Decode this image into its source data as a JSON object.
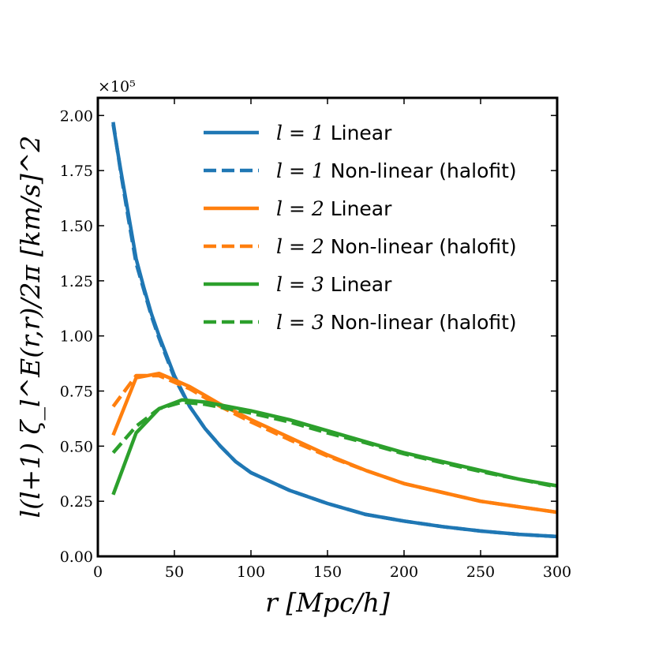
{
  "chart_data": {
    "type": "line",
    "title": "",
    "xlabel": "r [Mpc/h]",
    "ylabel": "l(l+1) ζ_l^E(r,r)/2π [km/s]^2",
    "y_offset_label": "×10⁵",
    "y_scale": 100000,
    "xlim": [
      0,
      300
    ],
    "ylim": [
      0,
      2.08
    ],
    "x_ticks": [
      0,
      50,
      100,
      150,
      200,
      250,
      300
    ],
    "x_tick_labels": [
      "0",
      "50",
      "100",
      "150",
      "200",
      "250",
      "300"
    ],
    "y_ticks": [
      0,
      0.25,
      0.5,
      0.75,
      1.0,
      1.25,
      1.5,
      1.75,
      2.0
    ],
    "y_tick_labels": [
      "0.00",
      "0.25",
      "0.50",
      "0.75",
      "1.00",
      "1.25",
      "1.50",
      "1.75",
      "2.00"
    ],
    "legend_position": "top-right",
    "series": [
      {
        "name": "l = 1 Linear",
        "legend_math": "l = 1",
        "legend_text": "Linear",
        "color": "#1f77b4",
        "dash": "solid",
        "x": [
          10,
          15,
          20,
          25,
          30,
          35,
          40,
          50,
          60,
          70,
          80,
          90,
          100,
          125,
          150,
          175,
          200,
          225,
          250,
          275,
          300
        ],
        "y": [
          1.96,
          1.75,
          1.55,
          1.35,
          1.22,
          1.1,
          1.0,
          0.82,
          0.68,
          0.58,
          0.5,
          0.43,
          0.38,
          0.3,
          0.24,
          0.19,
          0.16,
          0.135,
          0.115,
          0.1,
          0.09
        ]
      },
      {
        "name": "l = 1 Non-linear (halofit)",
        "legend_math": "l = 1",
        "legend_text": "Non-linear (halofit)",
        "color": "#1f77b4",
        "dash": "dashed",
        "x": [
          10,
          15,
          20,
          25,
          30,
          35,
          40,
          50,
          60,
          70,
          80,
          90,
          100,
          125,
          150,
          175,
          200,
          225,
          250,
          275,
          300
        ],
        "y": [
          1.97,
          1.74,
          1.53,
          1.33,
          1.21,
          1.09,
          0.99,
          0.81,
          0.68,
          0.58,
          0.5,
          0.43,
          0.38,
          0.3,
          0.24,
          0.19,
          0.16,
          0.135,
          0.115,
          0.1,
          0.09
        ]
      },
      {
        "name": "l = 2 Linear",
        "legend_math": "l = 2",
        "legend_text": "Linear",
        "color": "#ff7f0e",
        "dash": "solid",
        "x": [
          10,
          25,
          40,
          50,
          60,
          70,
          80,
          100,
          125,
          150,
          175,
          200,
          225,
          250,
          275,
          300
        ],
        "y": [
          0.55,
          0.81,
          0.83,
          0.8,
          0.77,
          0.73,
          0.69,
          0.62,
          0.54,
          0.46,
          0.39,
          0.33,
          0.29,
          0.25,
          0.225,
          0.2
        ]
      },
      {
        "name": "l = 2 Non-linear (halofit)",
        "legend_math": "l = 2",
        "legend_text": "Non-linear (halofit)",
        "color": "#ff7f0e",
        "dash": "dashed",
        "x": [
          10,
          25,
          40,
          50,
          60,
          70,
          80,
          100,
          125,
          150,
          175,
          200,
          225,
          250,
          275,
          300
        ],
        "y": [
          0.68,
          0.82,
          0.82,
          0.79,
          0.76,
          0.72,
          0.68,
          0.61,
          0.53,
          0.455,
          0.39,
          0.33,
          0.29,
          0.25,
          0.225,
          0.2
        ]
      },
      {
        "name": "l = 3 Linear",
        "legend_math": "l = 3",
        "legend_text": "Linear",
        "color": "#2ca02c",
        "dash": "solid",
        "x": [
          10,
          25,
          40,
          55,
          70,
          85,
          100,
          125,
          150,
          175,
          200,
          225,
          250,
          275,
          300
        ],
        "y": [
          0.28,
          0.56,
          0.67,
          0.71,
          0.7,
          0.68,
          0.66,
          0.62,
          0.57,
          0.52,
          0.47,
          0.43,
          0.39,
          0.35,
          0.32
        ]
      },
      {
        "name": "l = 3 Non-linear (halofit)",
        "legend_math": "l = 3",
        "legend_text": "Non-linear (halofit)",
        "color": "#2ca02c",
        "dash": "dashed",
        "x": [
          10,
          25,
          40,
          55,
          70,
          85,
          100,
          125,
          150,
          175,
          200,
          225,
          250,
          275,
          300
        ],
        "y": [
          0.47,
          0.59,
          0.67,
          0.7,
          0.69,
          0.67,
          0.65,
          0.61,
          0.56,
          0.515,
          0.465,
          0.425,
          0.385,
          0.35,
          0.315
        ]
      }
    ]
  }
}
